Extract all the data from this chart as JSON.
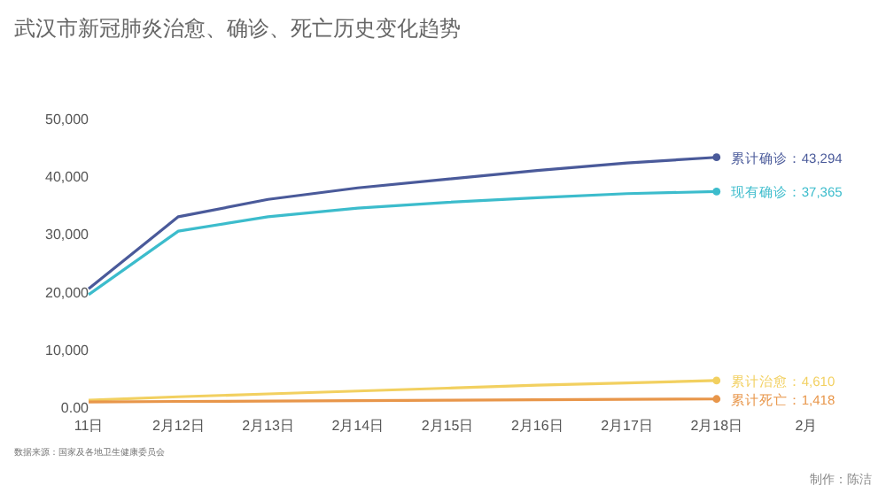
{
  "chart_data": {
    "type": "line",
    "title": "武汉市新冠肺炎治愈、确诊、死亡历史变化趋势",
    "categories": [
      "11日",
      "2月12日",
      "2月13日",
      "2月14日",
      "2月15日",
      "2月16日",
      "2月17日",
      "2月18日",
      "2月"
    ],
    "series": [
      {
        "name": "累计确诊：43,294",
        "color": "#4a5a9a",
        "values": [
          20500,
          33000,
          36000,
          38000,
          39500,
          41000,
          42300,
          43294,
          null
        ]
      },
      {
        "name": "现有确诊：37,365",
        "color": "#3cbccc",
        "values": [
          19500,
          30500,
          33000,
          34500,
          35500,
          36300,
          37000,
          37365,
          null
        ]
      },
      {
        "name": "累计治愈：4,610",
        "color": "#f2d060",
        "values": [
          1200,
          1800,
          2300,
          2800,
          3300,
          3800,
          4200,
          4610,
          null
        ]
      },
      {
        "name": "累计死亡：1,418",
        "color": "#e8964a",
        "values": [
          900,
          1000,
          1050,
          1120,
          1200,
          1280,
          1350,
          1418,
          null
        ]
      }
    ],
    "ylim": [
      0,
      50000
    ],
    "yticks": [
      {
        "value": 0,
        "label": "0.00"
      },
      {
        "value": 10000,
        "label": "10,000"
      },
      {
        "value": 20000,
        "label": "20,000"
      },
      {
        "value": 30000,
        "label": "30,000"
      },
      {
        "value": 40000,
        "label": "40,000"
      },
      {
        "value": 50000,
        "label": "50,000"
      }
    ],
    "grid": false,
    "annotations": [
      "数据来源：国家及各地卫生健康委员会",
      "制作：陈洁"
    ]
  }
}
